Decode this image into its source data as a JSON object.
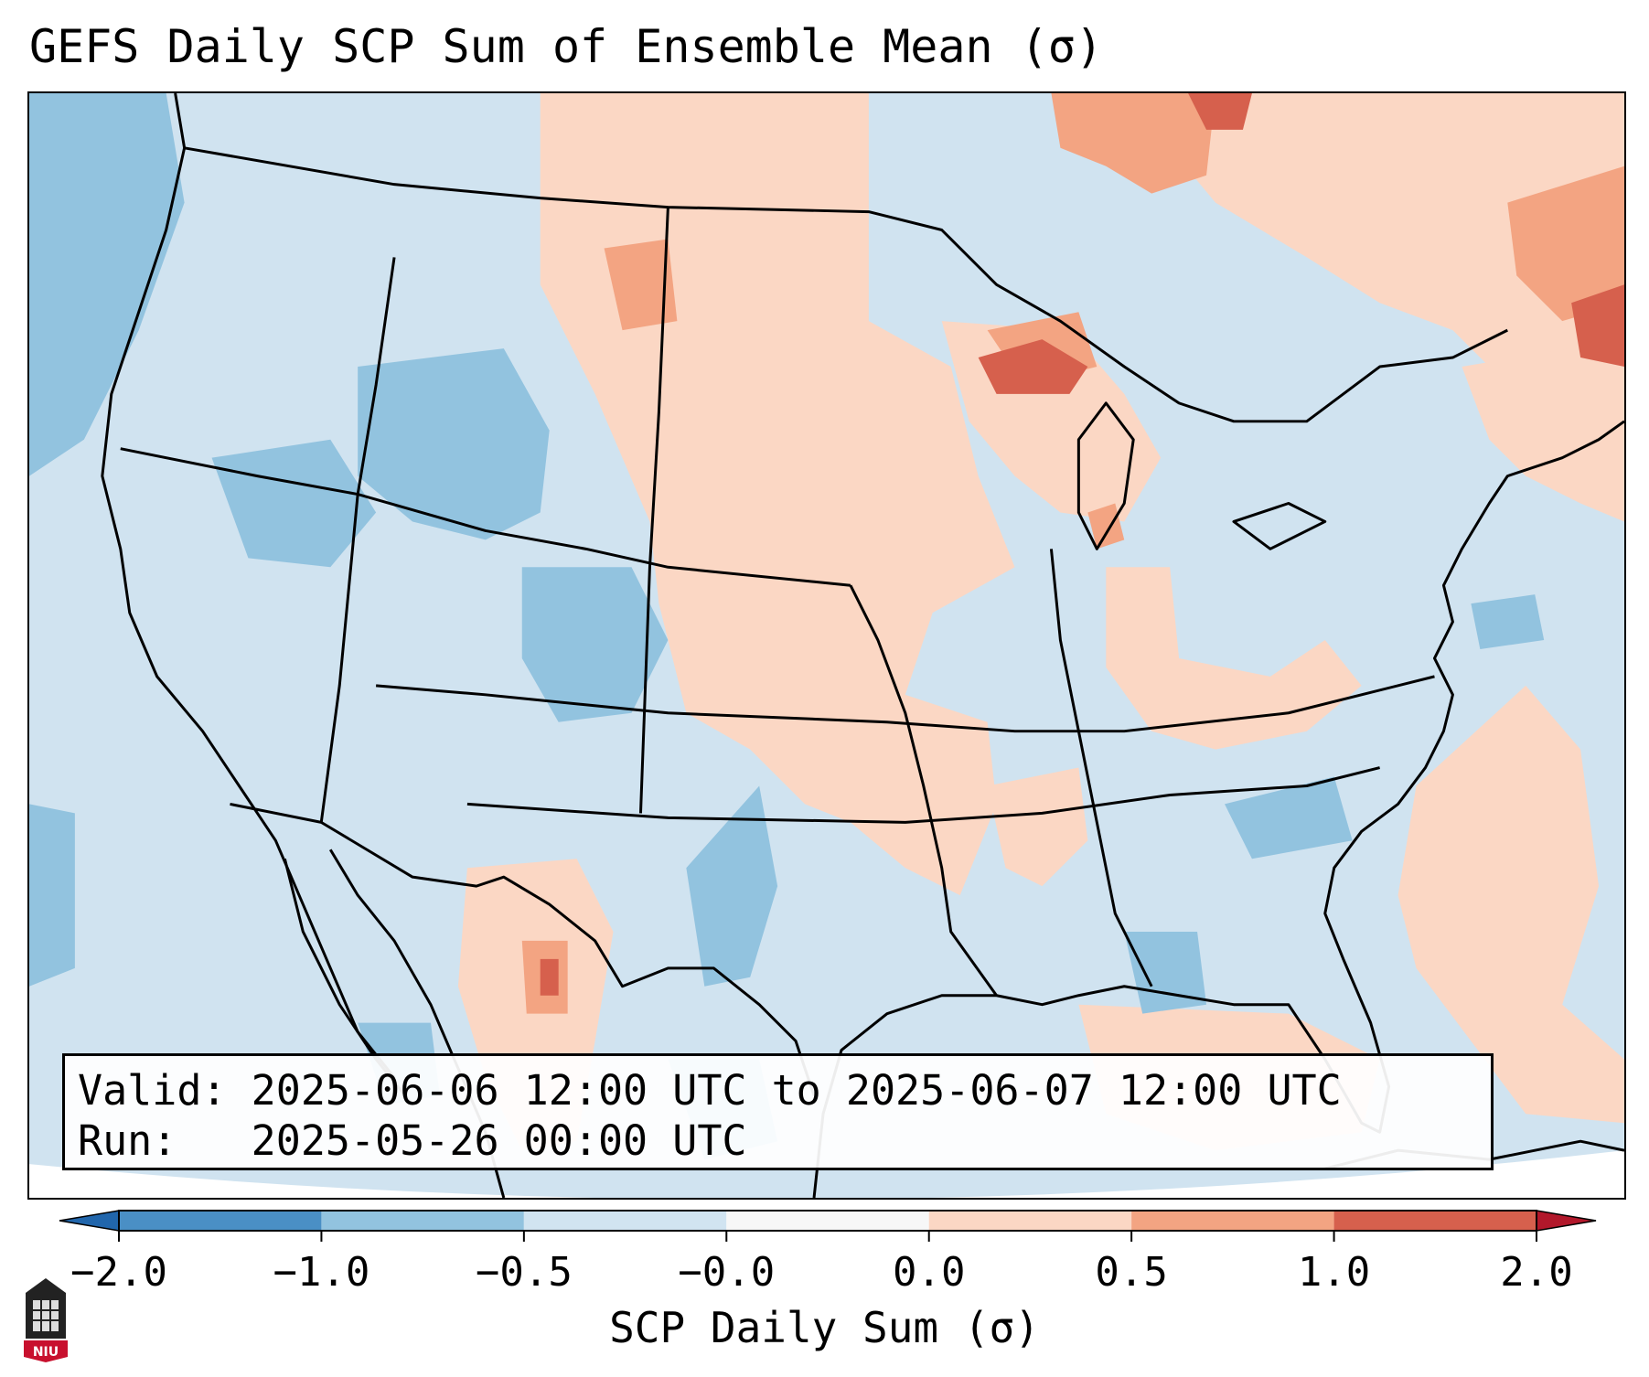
{
  "title": "GEFS Daily SCP Sum of Ensemble Mean (σ)",
  "info": {
    "valid_label": "Valid:",
    "valid_value": "2025-06-06 12:00 UTC to 2025-06-07 12:00 UTC",
    "run_label": "Run:",
    "run_value": "2025-05-26 00:00 UTC"
  },
  "colorbar": {
    "label": "SCP Daily Sum (σ)",
    "ticks": [
      "−2.0",
      "−1.0",
      "−0.5",
      "−0.0",
      "0.0",
      "0.5",
      "1.0",
      "2.0"
    ],
    "bins": [
      {
        "from": "−2.0",
        "to": "−1.0",
        "color": "#4a8fc5"
      },
      {
        "from": "−1.0",
        "to": "−0.5",
        "color": "#92c3df"
      },
      {
        "from": "−0.5",
        "to": "−0.0",
        "color": "#d1e4f1"
      },
      {
        "from": "−0.0",
        "to": "0.0",
        "color": "#f7f7f7"
      },
      {
        "from": "0.0",
        "to": "0.5",
        "color": "#fbd7c4"
      },
      {
        "from": "0.5",
        "to": "1.0",
        "color": "#f3a482"
      },
      {
        "from": "1.0",
        "to": "2.0",
        "color": "#d6604d"
      }
    ],
    "under_color": "#2166ac",
    "over_color": "#b2182b"
  },
  "logo": {
    "text": "NIU"
  },
  "colors": {
    "neutral_blue": "#d0e3f0",
    "light_red": "#fbd7c4",
    "mid_red": "#f3a482",
    "strong_red": "#d6604d",
    "dark_red": "#b2182b",
    "mid_blue": "#92c3df",
    "outline": "#000000"
  }
}
